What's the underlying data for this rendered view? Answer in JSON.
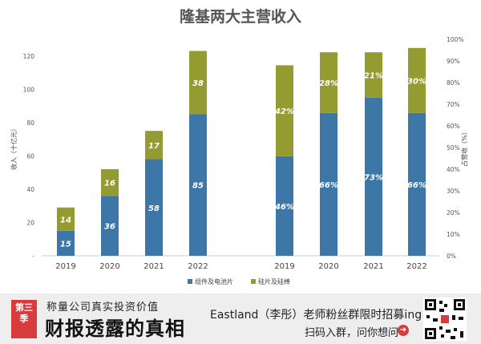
{
  "chart_data": {
    "type": "bar",
    "title": "隆基两大主营收入",
    "left_panel": {
      "categories": [
        "2019",
        "2020",
        "2021",
        "2022"
      ],
      "ylabel": "收入（十亿元）",
      "ylim": [
        0,
        130
      ],
      "yticks": [
        "-",
        "20",
        "40",
        "60",
        "80",
        "100",
        "120"
      ],
      "series": [
        {
          "name": "组件及电池片",
          "values": [
            15,
            36,
            58,
            85
          ]
        },
        {
          "name": "硅片及硅棒",
          "values": [
            14,
            16,
            17,
            38
          ]
        }
      ]
    },
    "right_panel": {
      "categories": [
        "2019",
        "2020",
        "2021",
        "2022"
      ],
      "ylabel": "占营收（%）",
      "ylim": [
        0,
        100
      ],
      "yticks": [
        "0%",
        "10%",
        "20%",
        "30%",
        "40%",
        "50%",
        "60%",
        "70%",
        "80%",
        "90%",
        "100%"
      ],
      "series": [
        {
          "name": "组件及电池片",
          "values": [
            46,
            66,
            73,
            66
          ],
          "labels": [
            "46%",
            "66%",
            "73%",
            "66%"
          ]
        },
        {
          "name": "硅片及硅棒",
          "values": [
            42,
            28,
            21,
            30
          ],
          "labels": [
            "42%",
            "28%",
            "21%",
            "30%"
          ]
        }
      ]
    },
    "legend": [
      "组件及电池片",
      "硅片及硅棒"
    ],
    "colors": {
      "blue": "#3d77a8",
      "olive": "#949b31"
    }
  },
  "banner": {
    "season": "第三季",
    "subtitle": "称量公司真实投资价值",
    "title": "财报透露的真相",
    "promo_line1": "Eastland（李彤）老师粉丝群限时招募ing",
    "promo_line2": "扫码入群，问你想问",
    "arrow": "➜"
  }
}
